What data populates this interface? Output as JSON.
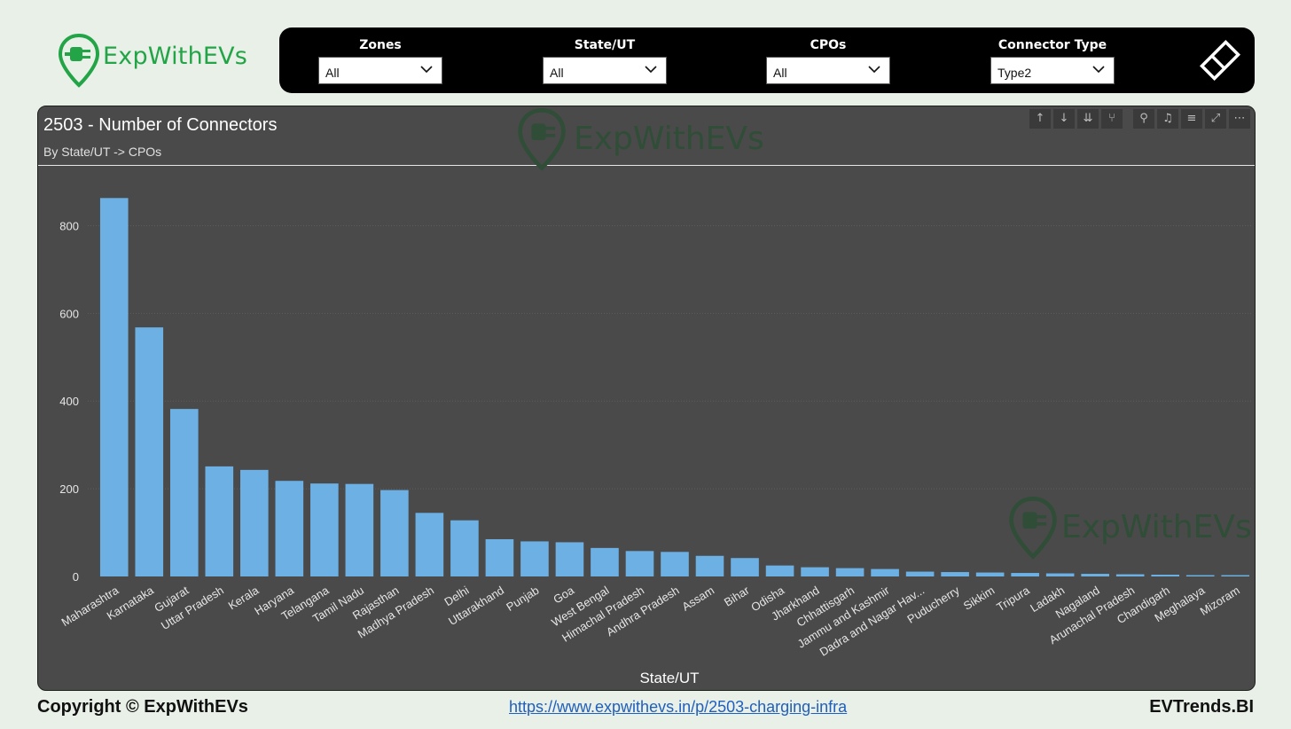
{
  "brand": {
    "logo_text": "ExpWithEVs",
    "accent": "#22a447"
  },
  "filters": [
    {
      "label": "Zones",
      "value": "All"
    },
    {
      "label": "State/UT",
      "value": "All"
    },
    {
      "label": "CPOs",
      "value": "All"
    },
    {
      "label": "Connector Type",
      "value": "Type2"
    }
  ],
  "visual_toolbar": [
    "arrow-up-icon",
    "arrow-down-icon",
    "double-arrow-down-icon",
    "expand-hierarchy-icon",
    "pin-icon",
    "bell-icon",
    "filter-icon",
    "focus-mode-icon",
    "more-options-icon"
  ],
  "watermark_text": "ExpWithEVs",
  "chart_data": {
    "type": "bar",
    "title": "2503 - Number of Connectors",
    "subtitle": "By State/UT -> CPOs",
    "xlabel": "State/UT",
    "ylabel": "",
    "ylim": [
      0,
      900
    ],
    "yticks": [
      0,
      200,
      400,
      600,
      800
    ],
    "grid": true,
    "bar_color": "#6cb0e4",
    "categories": [
      "Maharashtra",
      "Karnataka",
      "Gujarat",
      "Uttar Pradesh",
      "Kerala",
      "Haryana",
      "Telangana",
      "Tamil Nadu",
      "Rajasthan",
      "Madhya Pradesh",
      "Delhi",
      "Uttarakhand",
      "Punjab",
      "Goa",
      "West Bengal",
      "Himachal Pradesh",
      "Andhra Pradesh",
      "Assam",
      "Bihar",
      "Odisha",
      "Jharkhand",
      "Chhattisgarh",
      "Jammu and Kashmir",
      "Dadra and Nagar Hav...",
      "Puducherry",
      "Sikkim",
      "Tripura",
      "Ladakh",
      "Nagaland",
      "Arunachal Pradesh",
      "Chandigarh",
      "Meghalaya",
      "Mizoram"
    ],
    "values": [
      863,
      568,
      382,
      251,
      243,
      218,
      212,
      211,
      197,
      145,
      128,
      85,
      80,
      78,
      65,
      58,
      56,
      47,
      42,
      25,
      21,
      19,
      17,
      11,
      10,
      9,
      8,
      7,
      6,
      5,
      4,
      3,
      3
    ]
  },
  "footer": {
    "copyright": "Copyright © ExpWithEVs",
    "link": "https://www.expwithevs.in/p/2503-charging-infra",
    "right": "EVTrends.BI"
  }
}
